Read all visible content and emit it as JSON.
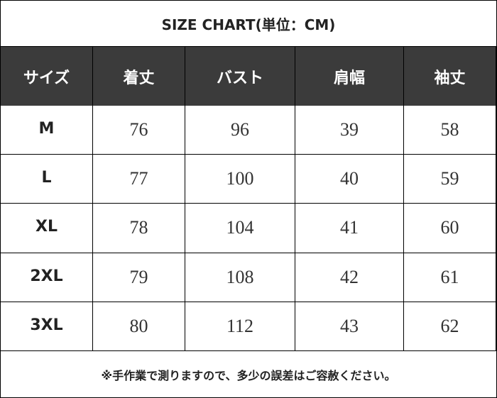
{
  "title": "SIZE CHART(単位：CM)",
  "table": {
    "header": [
      "サイズ",
      "着丈",
      "バスト",
      "肩幅",
      "袖丈"
    ],
    "rows": [
      [
        "M",
        76,
        96,
        39,
        58
      ],
      [
        "L",
        77,
        100,
        40,
        59
      ],
      [
        "XL",
        78,
        104,
        41,
        60
      ],
      [
        "2XL",
        79,
        108,
        42,
        61
      ],
      [
        "3XL",
        80,
        112,
        43,
        62
      ]
    ]
  },
  "note": "※手作業で測りますので、多少の誤差はご容赦ください。"
}
